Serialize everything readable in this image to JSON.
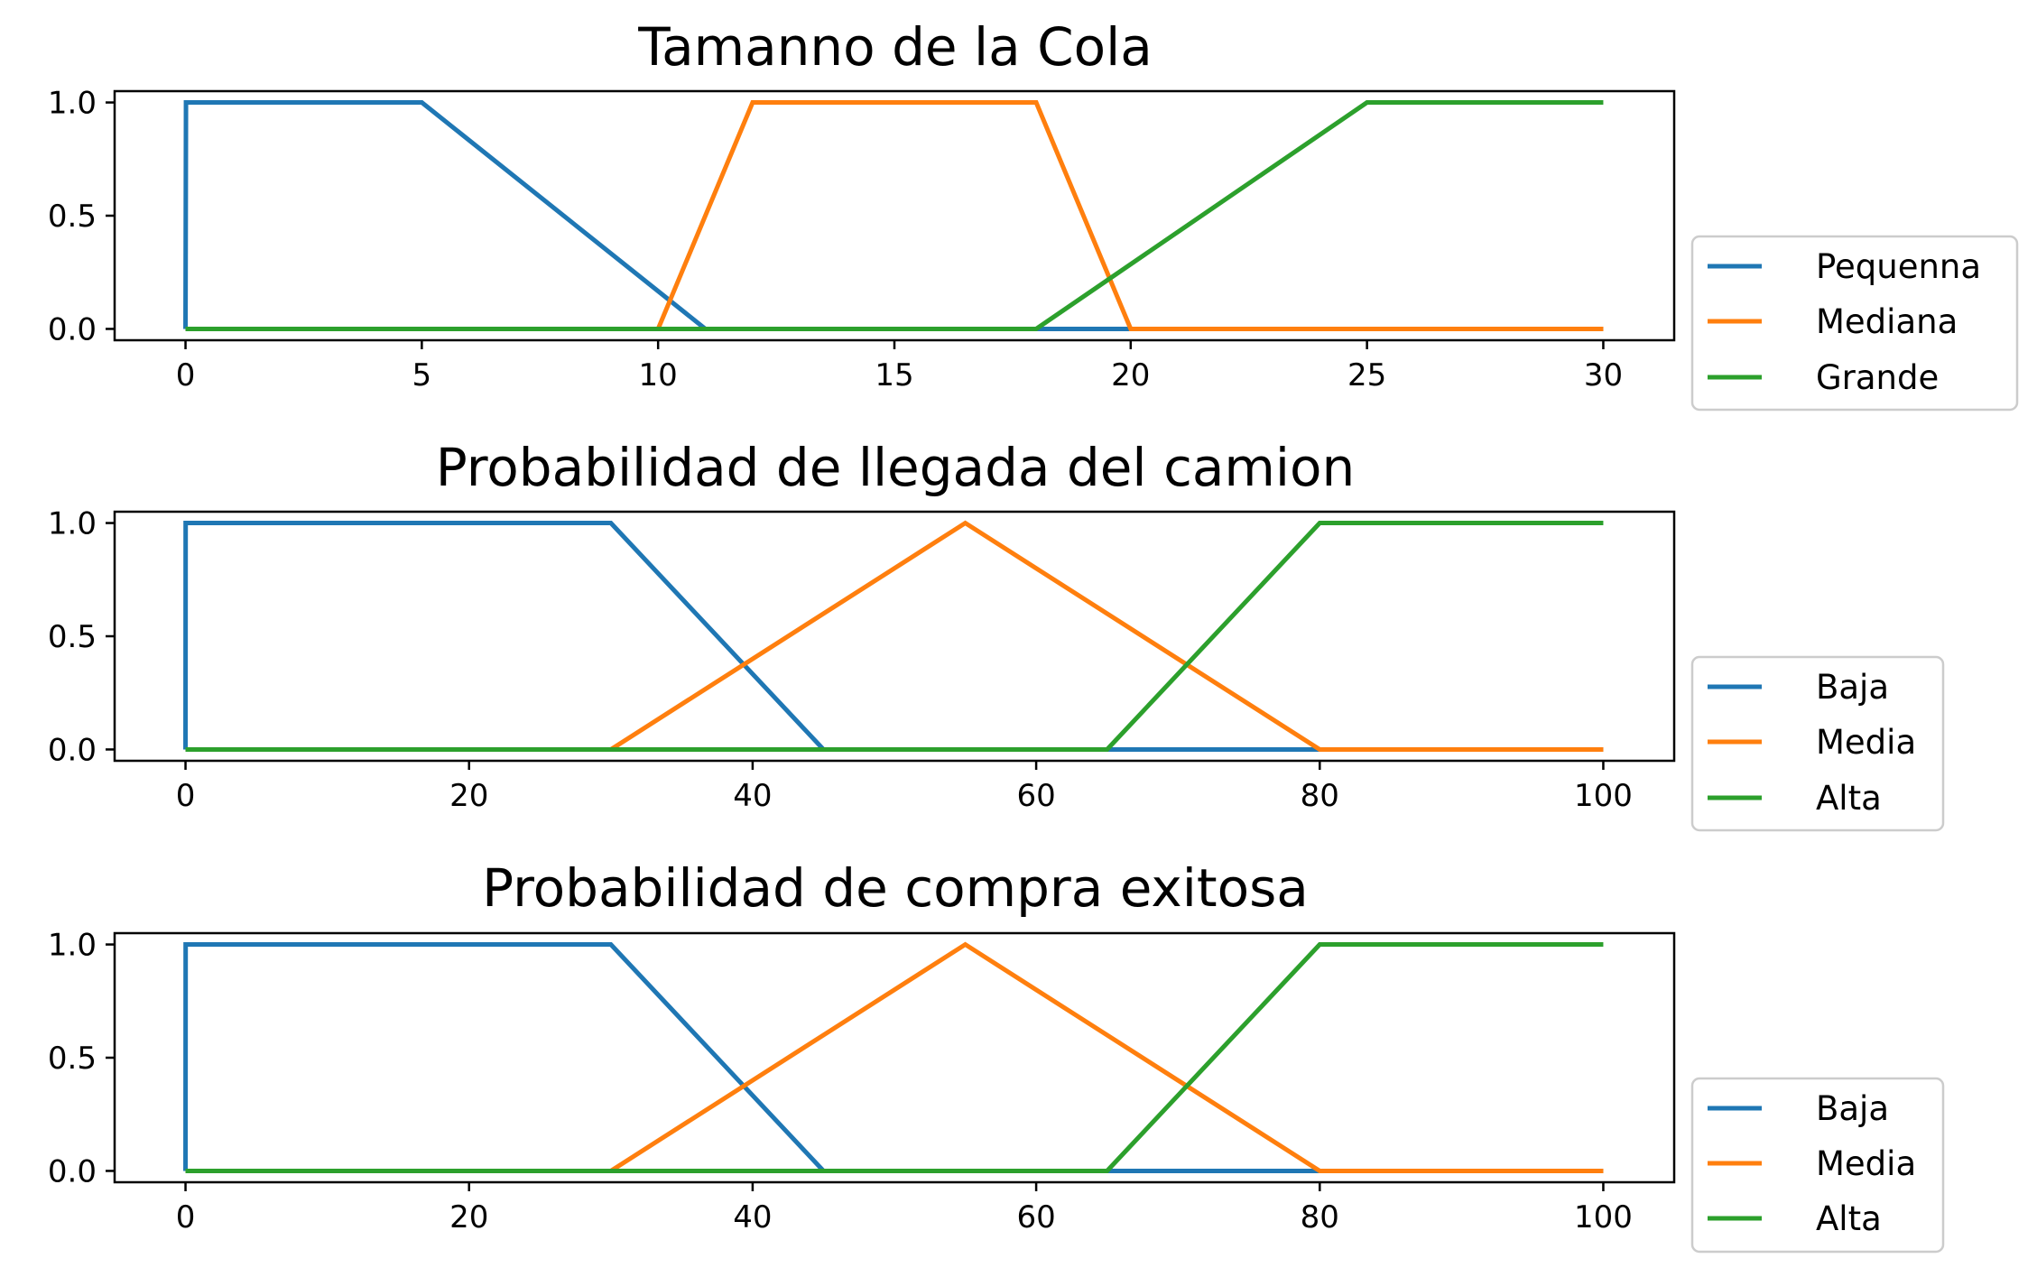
{
  "colors": {
    "series1": "#1f77b4",
    "series2": "#ff7f0e",
    "series3": "#2ca02c"
  },
  "chart_data": [
    {
      "type": "line",
      "title": "Tamanno de la Cola",
      "xlabel": "",
      "ylabel": "",
      "xlim": [
        -1.5,
        31.5
      ],
      "ylim": [
        -0.05,
        1.05
      ],
      "xticks": [
        0,
        5,
        10,
        15,
        20,
        25,
        30
      ],
      "yticks": [
        0.0,
        0.5,
        1.0
      ],
      "xtick_labels": [
        "0",
        "5",
        "10",
        "15",
        "20",
        "25",
        "30"
      ],
      "ytick_labels": [
        "0.0",
        "0.5",
        "1.0"
      ],
      "grid": false,
      "legend_position": "outside-right-bottom",
      "series": [
        {
          "name": "Pequenna",
          "x": [
            0,
            0.01,
            5,
            11,
            30
          ],
          "y": [
            0,
            1,
            1,
            0,
            0
          ]
        },
        {
          "name": "Mediana",
          "x": [
            0,
            10,
            12,
            18,
            20,
            30
          ],
          "y": [
            0,
            0,
            1,
            1,
            0,
            0
          ]
        },
        {
          "name": "Grande",
          "x": [
            0,
            18,
            25,
            30
          ],
          "y": [
            0,
            0,
            1,
            1
          ]
        }
      ]
    },
    {
      "type": "line",
      "title": "Probabilidad de llegada del camion",
      "xlabel": "",
      "ylabel": "",
      "xlim": [
        -5,
        105
      ],
      "ylim": [
        -0.05,
        1.05
      ],
      "xticks": [
        0,
        20,
        40,
        60,
        80,
        100
      ],
      "yticks": [
        0.0,
        0.5,
        1.0
      ],
      "xtick_labels": [
        "0",
        "20",
        "40",
        "60",
        "80",
        "100"
      ],
      "ytick_labels": [
        "0.0",
        "0.5",
        "1.0"
      ],
      "grid": false,
      "legend_position": "outside-right-bottom",
      "series": [
        {
          "name": "Baja",
          "x": [
            0,
            0.01,
            30,
            45,
            100
          ],
          "y": [
            0,
            1,
            1,
            0,
            0
          ]
        },
        {
          "name": "Media",
          "x": [
            0,
            30,
            55,
            80,
            100
          ],
          "y": [
            0,
            0,
            1,
            0,
            0
          ]
        },
        {
          "name": "Alta",
          "x": [
            0,
            65,
            80,
            100
          ],
          "y": [
            0,
            0,
            1,
            1
          ]
        }
      ]
    },
    {
      "type": "line",
      "title": "Probabilidad de compra exitosa",
      "xlabel": "",
      "ylabel": "",
      "xlim": [
        -5,
        105
      ],
      "ylim": [
        -0.05,
        1.05
      ],
      "xticks": [
        0,
        20,
        40,
        60,
        80,
        100
      ],
      "yticks": [
        0.0,
        0.5,
        1.0
      ],
      "xtick_labels": [
        "0",
        "20",
        "40",
        "60",
        "80",
        "100"
      ],
      "ytick_labels": [
        "0.0",
        "0.5",
        "1.0"
      ],
      "grid": false,
      "legend_position": "outside-right-bottom",
      "series": [
        {
          "name": "Baja",
          "x": [
            0,
            0.01,
            30,
            45,
            100
          ],
          "y": [
            0,
            1,
            1,
            0,
            0
          ]
        },
        {
          "name": "Media",
          "x": [
            0,
            30,
            55,
            80,
            100
          ],
          "y": [
            0,
            0,
            1,
            0,
            0
          ]
        },
        {
          "name": "Alta",
          "x": [
            0,
            65,
            80,
            100
          ],
          "y": [
            0,
            0,
            1,
            1
          ]
        }
      ]
    }
  ]
}
